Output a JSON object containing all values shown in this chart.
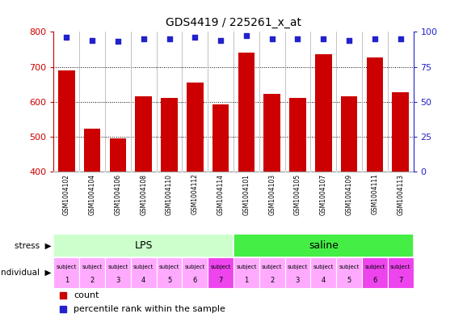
{
  "title": "GDS4419 / 225261_x_at",
  "samples": [
    "GSM1004102",
    "GSM1004104",
    "GSM1004106",
    "GSM1004108",
    "GSM1004110",
    "GSM1004112",
    "GSM1004114",
    "GSM1004101",
    "GSM1004103",
    "GSM1004105",
    "GSM1004107",
    "GSM1004109",
    "GSM1004111",
    "GSM1004113"
  ],
  "counts": [
    690,
    522,
    495,
    615,
    610,
    655,
    592,
    740,
    622,
    610,
    737,
    615,
    727,
    628
  ],
  "percentiles": [
    96,
    94,
    93,
    95,
    95,
    96,
    94,
    97,
    95,
    95,
    95,
    94,
    95,
    95
  ],
  "ylim_left": [
    400,
    800
  ],
  "ylim_right": [
    0,
    100
  ],
  "yticks_left": [
    400,
    500,
    600,
    700,
    800
  ],
  "yticks_right": [
    0,
    25,
    50,
    75,
    100
  ],
  "bar_color": "#cc0000",
  "dot_color": "#2222cc",
  "stress_groups": [
    {
      "label": "LPS",
      "start": 0,
      "end": 7,
      "color": "#ccffcc"
    },
    {
      "label": "saline",
      "start": 7,
      "end": 14,
      "color": "#44ee44"
    }
  ],
  "individual_labels": [
    "subject\n1",
    "subject\n2",
    "subject\n3",
    "subject\n4",
    "subject\n5",
    "subject\n6",
    "subject\n7",
    "subject\n1",
    "subject\n2",
    "subject\n3",
    "subject\n4",
    "subject\n5",
    "subject\n6",
    "subject\n7"
  ],
  "individual_colors": [
    "#ffaaff",
    "#ffaaff",
    "#ffaaff",
    "#ffaaff",
    "#ffaaff",
    "#ffaaff",
    "#ee44ee",
    "#ffaaff",
    "#ffaaff",
    "#ffaaff",
    "#ffaaff",
    "#ffaaff",
    "#ee44ee",
    "#ee44ee"
  ],
  "bg_color": "#ffffff",
  "names_bg": "#cccccc",
  "left_axis_color": "#cc0000",
  "right_axis_color": "#2222cc"
}
